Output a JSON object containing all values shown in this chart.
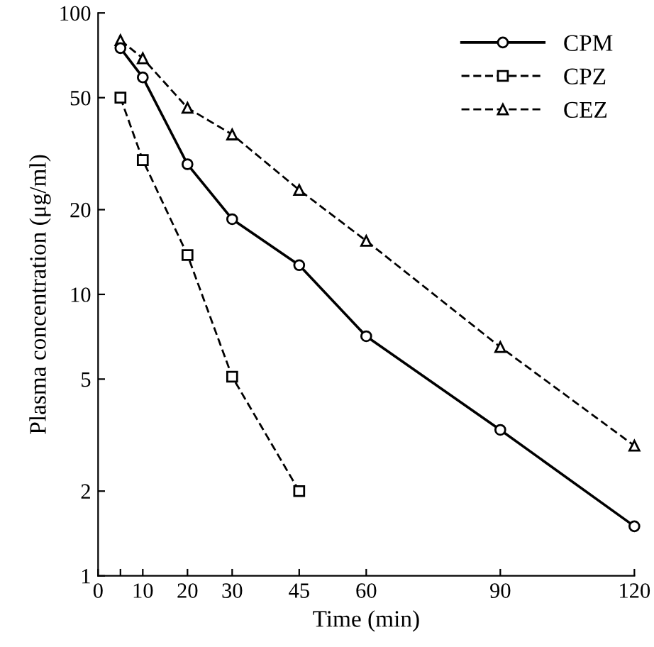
{
  "chart_data": {
    "type": "line",
    "xlabel": "Time (min)",
    "ylabel": "Plasma concentration (μg/ml)",
    "log": "y",
    "xlim": [
      0,
      120
    ],
    "xticks": [
      0,
      {
        "value": 5,
        "label": null
      },
      10,
      20,
      30,
      45,
      60,
      90,
      120
    ],
    "ylim": [
      1,
      100
    ],
    "yticks": [
      1,
      2,
      5,
      10,
      20,
      50,
      100
    ],
    "grid": false,
    "legend": "top right",
    "series": [
      {
        "name": "CPM",
        "color": "#000000",
        "marker": "circle",
        "line_style": "solid",
        "x": [
          5,
          10,
          20,
          30,
          45,
          60,
          90,
          120
        ],
        "values": [
          75,
          59,
          29,
          18.5,
          12.7,
          7.1,
          3.3,
          1.5
        ]
      },
      {
        "name": "CPZ",
        "color": "#000000",
        "marker": "square",
        "line_style": "dashed",
        "x": [
          5,
          10,
          20,
          30,
          45
        ],
        "values": [
          50,
          30,
          13.8,
          5.1,
          2.0
        ]
      },
      {
        "name": "CEZ",
        "color": "#000000",
        "marker": "triangle",
        "line_style": "dashed",
        "x": [
          5,
          10,
          20,
          30,
          45,
          60,
          90,
          120
        ],
        "values": [
          80,
          69,
          46,
          37,
          23.5,
          15.5,
          6.5,
          2.9
        ]
      }
    ]
  }
}
